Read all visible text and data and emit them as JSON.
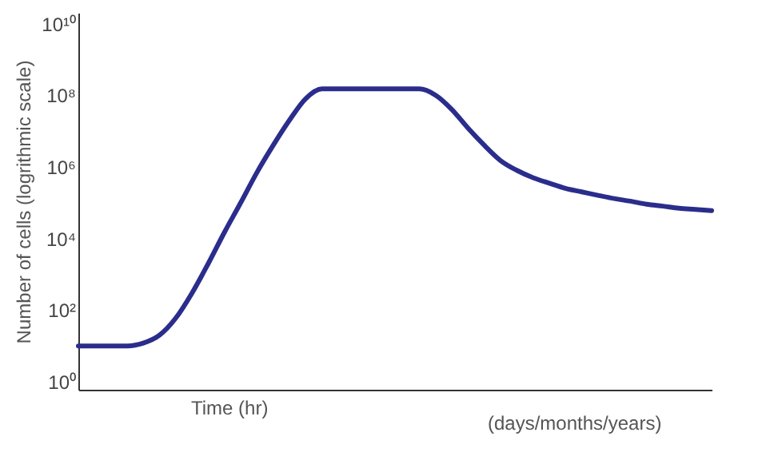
{
  "chart_data": {
    "type": "line",
    "ylabel": "Number of cells (logrithmic scale)",
    "xlabel": "Time (hr)",
    "annotations": [
      "(days/months/years)"
    ],
    "categories": [
      null,
      null,
      null,
      null,
      null,
      null,
      null,
      null,
      null,
      null,
      null,
      null,
      null,
      null,
      null,
      null,
      null,
      null,
      null,
      null,
      null,
      null,
      null,
      null,
      null,
      null,
      null,
      null,
      null,
      null,
      null,
      null,
      null,
      null,
      null,
      null,
      null,
      null,
      null,
      null
    ],
    "series": [
      {
        "color": "#2b2d8c",
        "values": [
          10,
          10,
          10,
          10,
          12,
          20,
          60,
          300,
          2000,
          15000,
          100000,
          700000,
          4000000,
          20000000,
          80000000,
          150000000,
          150000000,
          150000000,
          150000000,
          150000000,
          150000000,
          150000000,
          100000000,
          40000000,
          12000000,
          4000000,
          1500000,
          800000,
          500000,
          350000,
          250000,
          200000,
          160000,
          130000,
          110000,
          90000,
          80000,
          70000,
          65000,
          60000
        ]
      }
    ],
    "log": "y",
    "ylim": [
      0.6,
      20000000000
    ],
    "yticks": [
      {
        "value": 1,
        "label": "10⁰"
      },
      {
        "value": 100,
        "label": "10²"
      },
      {
        "value": 10000,
        "label": "10⁴"
      },
      {
        "value": 1000000,
        "label": "10⁶"
      },
      {
        "value": 100000000,
        "label": "10⁸"
      },
      {
        "value": 10000000000,
        "label": "10¹⁰"
      }
    ],
    "tick_labels": "y",
    "grid": false,
    "marker": "none",
    "line_style": "solid"
  }
}
